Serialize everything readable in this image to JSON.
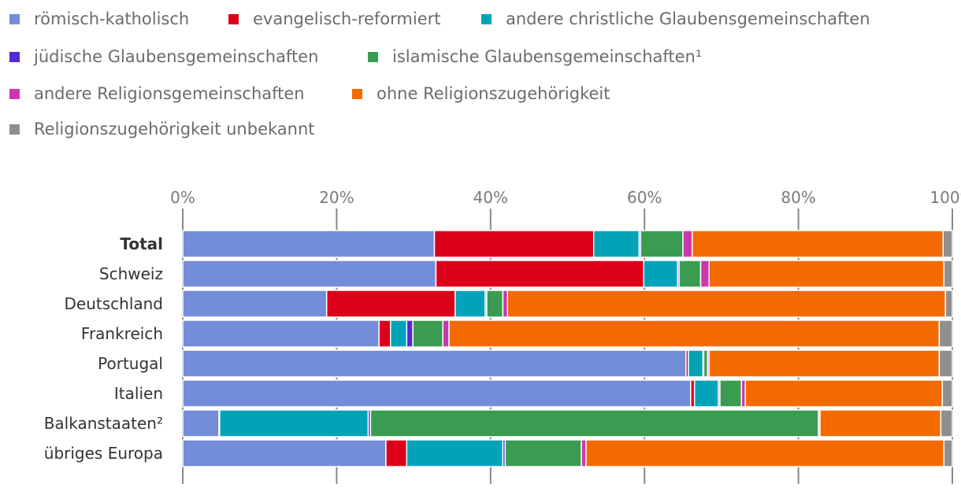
{
  "chart_data": {
    "type": "bar",
    "orientation": "horizontal",
    "stacked": true,
    "title": "",
    "xlabel": "",
    "ylabel": "",
    "xlim": [
      0,
      100
    ],
    "x_ticks": [
      "0%",
      "20%",
      "40%",
      "60%",
      "80%",
      "100%"
    ],
    "grid": true,
    "legend_position": "top",
    "categories": [
      "Total",
      "Schweiz",
      "Deutschland",
      "Frankreich",
      "Portugal",
      "Italien",
      "Balkanstaaten²",
      "übriges Europa"
    ],
    "series": [
      {
        "name": "römisch-katholisch",
        "color": "#748dd8",
        "values": [
          32.7,
          32.9,
          18.7,
          25.5,
          65.4,
          66.0,
          4.7,
          26.4
        ]
      },
      {
        "name": "evangelisch-reformiert",
        "color": "#dc001a",
        "values": [
          20.7,
          27.0,
          16.7,
          1.5,
          0.3,
          0.5,
          0.1,
          2.7
        ]
      },
      {
        "name": "andere christliche Glaubensgemeinschaften",
        "color": "#00a3b8",
        "values": [
          5.9,
          4.4,
          3.9,
          2.1,
          1.9,
          3.1,
          19.3,
          12.5
        ]
      },
      {
        "name": "jüdische Glaubensgemeinschaften",
        "color": "#5229d4",
        "values": [
          0.2,
          0.2,
          0.2,
          0.8,
          0.1,
          0.2,
          0.3,
          0.3
        ]
      },
      {
        "name": "islamische Glaubensgemeinschaften¹",
        "color": "#3a9c50",
        "values": [
          5.5,
          2.8,
          2.1,
          3.9,
          0.5,
          2.8,
          58.2,
          9.9
        ]
      },
      {
        "name": "andere Religionsgemeinschaften",
        "color": "#cd37ad",
        "values": [
          1.2,
          1.1,
          0.6,
          0.8,
          0.2,
          0.5,
          0.2,
          0.6
        ]
      },
      {
        "name": "ohne Religionszugehörigkeit",
        "color": "#f36b00",
        "values": [
          32.6,
          30.5,
          56.9,
          63.7,
          29.9,
          25.6,
          15.7,
          46.5
        ]
      },
      {
        "name": "Religionszugehörigkeit unbekannt",
        "color": "#8f8f8f",
        "values": [
          1.2,
          1.1,
          0.9,
          1.7,
          1.7,
          1.3,
          1.5,
          1.1
        ]
      }
    ],
    "bold_categories": [
      "Total"
    ]
  }
}
